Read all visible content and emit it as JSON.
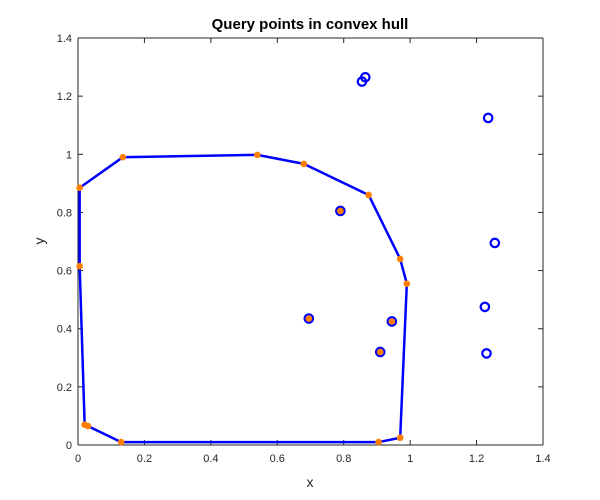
{
  "chart_data": {
    "type": "scatter",
    "title": "Query points in convex hull",
    "xlabel": "x",
    "ylabel": "y",
    "xlim": [
      0,
      1.4
    ],
    "ylim": [
      0,
      1.4
    ],
    "xticks": [
      0,
      0.2,
      0.4,
      0.6,
      0.8,
      1,
      1.2,
      1.4
    ],
    "xtick_labels": [
      "0",
      "0.2",
      "0.4",
      "0.6",
      "0.8",
      "1",
      "1.2",
      "1.4"
    ],
    "yticks": [
      0,
      0.2,
      0.4,
      0.6,
      0.8,
      1,
      1.2,
      1.4
    ],
    "ytick_labels": [
      "0",
      "0.2",
      "0.4",
      "0.6",
      "0.8",
      "1",
      "1.2",
      "1.4"
    ],
    "grid": false,
    "legend": false,
    "hull": {
      "color": "#0000ff",
      "x": [
        0.005,
        0.135,
        0.54,
        0.68,
        0.875,
        0.97,
        0.99,
        0.97,
        0.905,
        0.13,
        0.03,
        0.02,
        0.005,
        0.005
      ],
      "y": [
        0.885,
        0.99,
        0.998,
        0.967,
        0.86,
        0.64,
        0.555,
        0.025,
        0.01,
        0.01,
        0.065,
        0.07,
        0.615,
        0.885
      ]
    },
    "hull_vertices": {
      "color": "#ff8000",
      "x": [
        0.005,
        0.135,
        0.54,
        0.68,
        0.875,
        0.97,
        0.99,
        0.97,
        0.905,
        0.13,
        0.03,
        0.02,
        0.005
      ],
      "y": [
        0.885,
        0.99,
        0.998,
        0.967,
        0.86,
        0.64,
        0.555,
        0.025,
        0.01,
        0.01,
        0.065,
        0.07,
        0.615
      ]
    },
    "query_points": {
      "marker": "circle",
      "color": "#0000ff",
      "x": [
        0.855,
        0.865,
        1.235,
        0.79,
        1.255,
        0.695,
        0.945,
        0.91,
        1.225,
        1.23
      ],
      "y": [
        1.25,
        1.265,
        1.125,
        0.805,
        0.695,
        0.435,
        0.425,
        0.32,
        0.475,
        0.315
      ]
    },
    "points_inside": {
      "marker": "filled-dot",
      "color": "#ff8000",
      "x": [
        0.79,
        0.695,
        0.945,
        0.91
      ],
      "y": [
        0.805,
        0.435,
        0.425,
        0.32
      ]
    }
  }
}
